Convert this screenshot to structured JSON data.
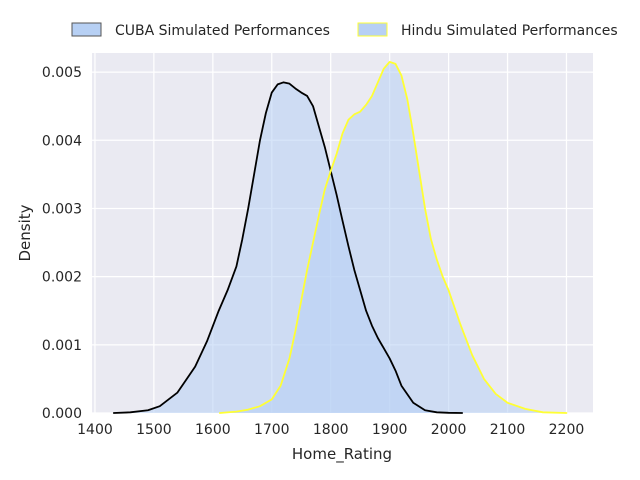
{
  "chart_data": {
    "type": "area",
    "xlabel": "Home_Rating",
    "ylabel": "Density",
    "xlim": [
      1395,
      2245
    ],
    "ylim": [
      0,
      0.00528
    ],
    "x_ticks": [
      1400,
      1500,
      1600,
      1700,
      1800,
      1900,
      2000,
      2100,
      2200
    ],
    "x_tick_labels": [
      "1400",
      "1500",
      "1600",
      "1700",
      "1800",
      "1900",
      "2000",
      "2100",
      "2200"
    ],
    "y_ticks": [
      0,
      0.001,
      0.002,
      0.003,
      0.004,
      0.005
    ],
    "y_tick_labels": [
      "0.000",
      "0.001",
      "0.002",
      "0.003",
      "0.004",
      "0.005"
    ],
    "grid": true,
    "legend_position": "top",
    "series": [
      {
        "name": "CUBA Simulated Performances",
        "line_color": "#000000",
        "fill_color": "#b7d0f4",
        "x": [
          1432,
          1460,
          1490,
          1510,
          1540,
          1570,
          1590,
          1610,
          1625,
          1640,
          1650,
          1660,
          1670,
          1680,
          1690,
          1700,
          1710,
          1720,
          1730,
          1740,
          1750,
          1760,
          1770,
          1780,
          1790,
          1800,
          1810,
          1820,
          1830,
          1840,
          1850,
          1860,
          1870,
          1880,
          1890,
          1900,
          1910,
          1920,
          1940,
          1960,
          1980,
          2000,
          2023
        ],
        "y": [
          0,
          1e-05,
          4e-05,
          0.0001,
          0.0003,
          0.00068,
          0.00105,
          0.0015,
          0.0018,
          0.00215,
          0.00255,
          0.003,
          0.0035,
          0.004,
          0.0044,
          0.0047,
          0.00482,
          0.00485,
          0.00483,
          0.00476,
          0.0047,
          0.00465,
          0.0045,
          0.0042,
          0.0039,
          0.00355,
          0.0032,
          0.00282,
          0.00245,
          0.0021,
          0.0018,
          0.0015,
          0.00128,
          0.0011,
          0.00095,
          0.0008,
          0.00062,
          0.0004,
          0.00015,
          4e-05,
          1e-05,
          3e-06,
          0
        ]
      },
      {
        "name": "Hindu Simulated Performances",
        "line_color": "#ffff33",
        "fill_color": "#b7d0f4",
        "x": [
          1612,
          1640,
          1660,
          1680,
          1700,
          1715,
          1730,
          1740,
          1750,
          1760,
          1770,
          1780,
          1790,
          1800,
          1810,
          1820,
          1830,
          1840,
          1850,
          1860,
          1870,
          1880,
          1890,
          1900,
          1910,
          1920,
          1930,
          1940,
          1950,
          1960,
          1970,
          1980,
          1990,
          2000,
          2010,
          2020,
          2040,
          2060,
          2080,
          2100,
          2130,
          2160,
          2200
        ],
        "y": [
          0,
          2e-05,
          5e-05,
          0.0001,
          0.0002,
          0.0004,
          0.0008,
          0.0012,
          0.00165,
          0.0021,
          0.0025,
          0.0029,
          0.00328,
          0.00355,
          0.0038,
          0.0041,
          0.0043,
          0.00438,
          0.00442,
          0.00452,
          0.00465,
          0.00485,
          0.00505,
          0.00515,
          0.00512,
          0.00495,
          0.0046,
          0.0041,
          0.00355,
          0.003,
          0.00255,
          0.00225,
          0.002,
          0.0018,
          0.00155,
          0.0013,
          0.00085,
          0.0005,
          0.00028,
          0.00015,
          6e-05,
          1e-05,
          0
        ]
      }
    ]
  }
}
